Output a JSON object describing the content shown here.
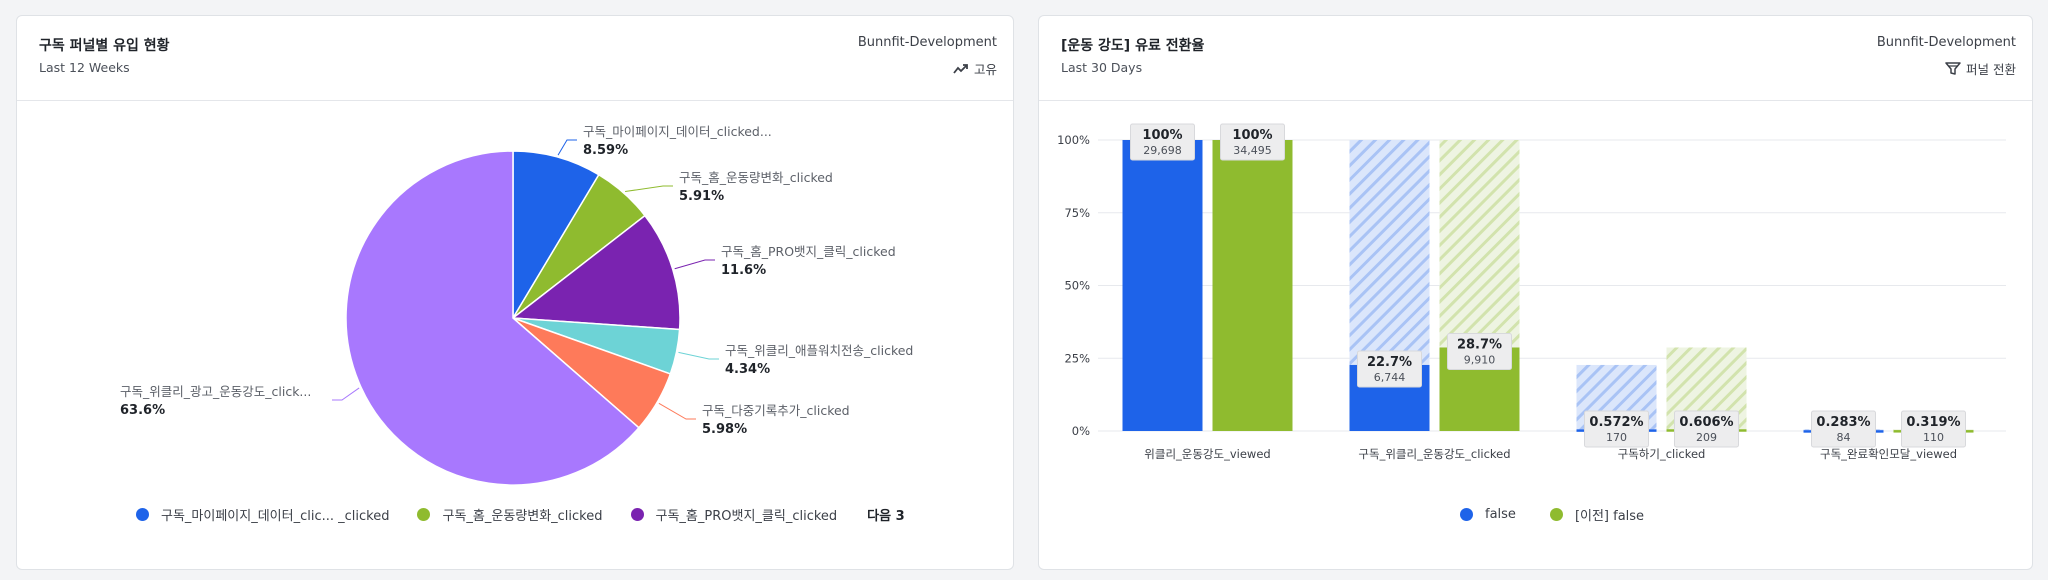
{
  "left_card": {
    "title": "구독 퍼널별 유입 현황",
    "subtitle": "Last 12 Weeks",
    "source": "Bunnfit-Development",
    "badge": "고유",
    "badge_icon": "trend-line-icon",
    "legend_more": "다음 3",
    "legend": [
      {
        "label": "구독_마이페이지_데이터_clic... _clicked",
        "color": "#1e63e9"
      },
      {
        "label": "구독_홈_운동량변화_clicked",
        "color": "#8fbb2f"
      },
      {
        "label": "구독_홈_PRO뱃지_클릭_clicked",
        "color": "#7a23b0"
      }
    ]
  },
  "right_card": {
    "title": "[운동 강도] 유료 전환율",
    "subtitle": "Last 30 Days",
    "source": "Bunnfit-Development",
    "badge": "퍼널 전환",
    "badge_icon": "funnel-icon",
    "legend": [
      {
        "label": "false",
        "color": "#1e63e9"
      },
      {
        "label": "[이전] false",
        "color": "#8fbb2f"
      }
    ]
  },
  "chart_data": [
    {
      "type": "pie",
      "title": "구독 퍼널별 유입 현황",
      "slices": [
        {
          "label": "구독_마이페이지_데이터_clicked...",
          "value": 8.59,
          "display": "8.59%",
          "color": "#1e63e9"
        },
        {
          "label": "구독_홈_운동량변화_clicked",
          "value": 5.91,
          "display": "5.91%",
          "color": "#8fbb2f"
        },
        {
          "label": "구독_홈_PRO뱃지_클릭_clicked",
          "value": 11.6,
          "display": "11.6%",
          "color": "#7a23b0"
        },
        {
          "label": "구독_위클리_애플워치전송_clicked",
          "value": 4.34,
          "display": "4.34%",
          "color": "#6dd3d6"
        },
        {
          "label": "구독_다중기록추가_clicked",
          "value": 5.98,
          "display": "5.98%",
          "color": "#fe7a5a"
        },
        {
          "label": "구독_위클리_광고_운동강도_click...",
          "value": 63.6,
          "display": "63.6%",
          "color": "#a878fe"
        }
      ]
    },
    {
      "type": "bar",
      "title": "[운동 강도] 유료 전환율",
      "categories": [
        "위클리_운동강도_viewed",
        "구독_위클리_운동강도_clicked",
        "구독하기_clicked",
        "구독_완료확인모달_viewed"
      ],
      "ylim": [
        0,
        100
      ],
      "yticks": [
        "0%",
        "25%",
        "50%",
        "75%",
        "100%"
      ],
      "series": [
        {
          "name": "false",
          "color": "#1e63e9",
          "hatch_color": "#bcd0f7",
          "values": [
            100,
            22.7,
            0.572,
            0.283
          ],
          "labels": [
            "100%",
            "22.7%",
            "0.572%",
            "0.283%"
          ],
          "counts": [
            "29,698",
            "6,744",
            "170",
            "84"
          ]
        },
        {
          "name": "[이전] false",
          "color": "#8fbb2f",
          "hatch_color": "#dce9c2",
          "values": [
            100,
            28.7,
            0.606,
            0.319
          ],
          "labels": [
            "100%",
            "28.7%",
            "0.606%",
            "0.319%"
          ],
          "counts": [
            "34,495",
            "9,910",
            "209",
            "110"
          ]
        }
      ]
    }
  ]
}
